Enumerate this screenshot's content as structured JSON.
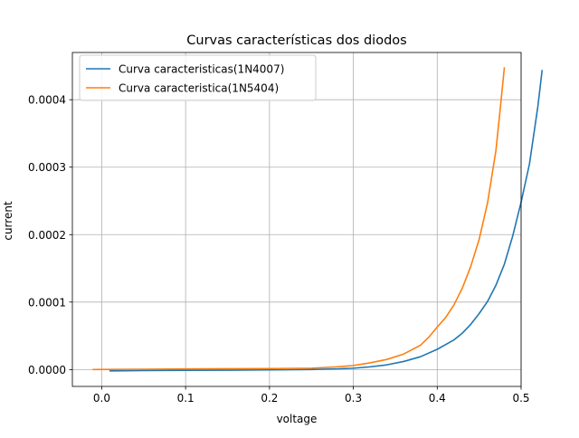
{
  "chart_data": {
    "type": "line",
    "title": "Curvas características dos diodos",
    "xlabel": "voltage",
    "ylabel": "current",
    "xlim": [
      -0.035,
      0.5
    ],
    "ylim": [
      -2.5e-05,
      0.00047
    ],
    "x_ticks": [
      0.0,
      0.1,
      0.2,
      0.3,
      0.4,
      0.5
    ],
    "x_tick_labels": [
      "0.0",
      "0.1",
      "0.2",
      "0.3",
      "0.4",
      "0.5"
    ],
    "y_ticks": [
      0.0,
      0.0001,
      0.0002,
      0.0003,
      0.0004
    ],
    "y_tick_labels": [
      "0.0000",
      "0.0001",
      "0.0002",
      "0.0003",
      "0.0004"
    ],
    "grid": true,
    "legend_position": "upper-left",
    "series": [
      {
        "name": "Curva caracteristicas(1N4007)",
        "color": "#1f77b4",
        "x": [
          0.01,
          0.05,
          0.1,
          0.15,
          0.2,
          0.25,
          0.28,
          0.3,
          0.32,
          0.34,
          0.36,
          0.38,
          0.4,
          0.42,
          0.43,
          0.44,
          0.45,
          0.46,
          0.47,
          0.48,
          0.49,
          0.5,
          0.51,
          0.52,
          0.525
        ],
        "y": [
          -2e-06,
          -1.5e-06,
          -1.2e-06,
          -1e-06,
          -5e-07,
          0.0,
          1e-06,
          2e-06,
          4e-06,
          7e-06,
          1.2e-05,
          1.9e-05,
          3e-05,
          4.4e-05,
          5.4e-05,
          6.7e-05,
          8.3e-05,
          0.000101,
          0.000125,
          0.000156,
          0.000198,
          0.000248,
          0.000305,
          0.00039,
          0.000443
        ]
      },
      {
        "name": "Curva caracteristica(1N5404)",
        "color": "#ff7f0e",
        "x": [
          -0.01,
          0.05,
          0.1,
          0.15,
          0.2,
          0.25,
          0.28,
          0.3,
          0.32,
          0.34,
          0.36,
          0.38,
          0.39,
          0.4,
          0.41,
          0.42,
          0.43,
          0.44,
          0.45,
          0.46,
          0.47,
          0.475,
          0.48
        ],
        "y": [
          0.0,
          5e-07,
          1e-06,
          1.2e-06,
          1.5e-06,
          2e-06,
          4e-06,
          6e-06,
          1e-05,
          1.5e-05,
          2.3e-05,
          3.6e-05,
          4.8e-05,
          6.3e-05,
          7.7e-05,
          9.6e-05,
          0.000121,
          0.000153,
          0.000193,
          0.000247,
          0.000325,
          0.000385,
          0.000447
        ]
      }
    ]
  }
}
